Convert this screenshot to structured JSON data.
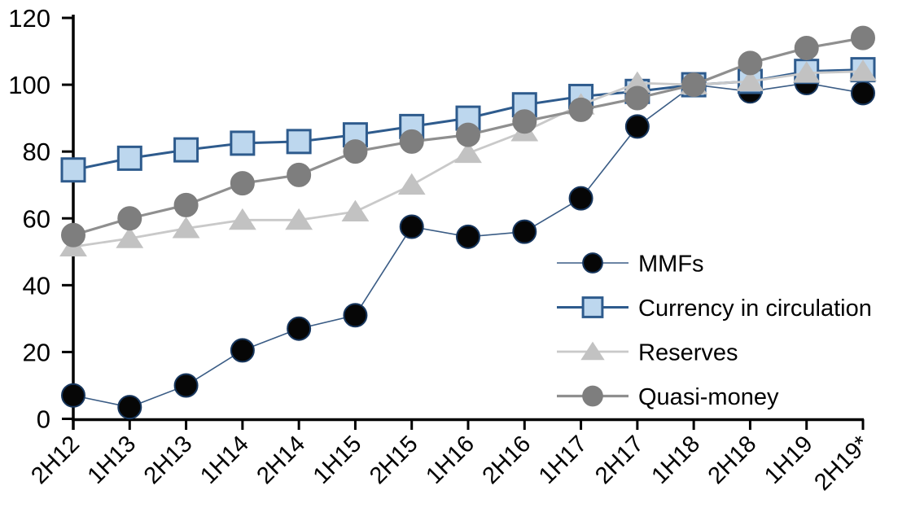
{
  "chart_data": {
    "type": "line",
    "title": "",
    "xlabel": "",
    "ylabel": "",
    "categories": [
      "2H12",
      "1H13",
      "2H13",
      "1H14",
      "2H14",
      "1H15",
      "2H15",
      "1H16",
      "2H16",
      "1H17",
      "2H17",
      "1H18",
      "2H18",
      "1H19",
      "2H19*"
    ],
    "series": [
      {
        "name": "MMFs",
        "marker": "circle",
        "marker_fill": "#060606",
        "marker_stroke": "#17365d",
        "marker_stroke_width": 2,
        "marker_size": 28,
        "line_color": "#3a5c85",
        "line_width": 1.6,
        "values": [
          7,
          3.5,
          10,
          20.5,
          27,
          31,
          57.5,
          54.5,
          56,
          66,
          87.5,
          100,
          98,
          100.5,
          97.5
        ]
      },
      {
        "name": "Currency in circulation",
        "marker": "square",
        "marker_fill": "#bdd7ee",
        "marker_stroke": "#2e5b8d",
        "marker_stroke_width": 3,
        "marker_size": 28,
        "line_color": "#2e5b8d",
        "line_width": 3,
        "values": [
          74.5,
          78,
          80.5,
          82.5,
          83,
          85,
          87.5,
          90,
          94,
          96.5,
          98,
          100,
          101,
          104,
          104.5
        ]
      },
      {
        "name": "Reserves",
        "marker": "triangle",
        "marker_fill": "#c2c2c2",
        "marker_stroke": "#c2c2c2",
        "marker_stroke_width": 1,
        "marker_size": 30,
        "line_color": "#c9c9c9",
        "line_width": 2.8,
        "values": [
          51.5,
          54,
          57,
          59.5,
          59.5,
          62,
          70,
          79.5,
          86,
          94,
          100.5,
          100,
          101,
          103.5,
          104
        ]
      },
      {
        "name": "Quasi-money",
        "marker": "circle",
        "marker_fill": "#7e7e7e",
        "marker_stroke": "#7e7e7e",
        "marker_stroke_width": 1,
        "marker_size": 29,
        "line_color": "#8f8f8f",
        "line_width": 3.2,
        "values": [
          55,
          60,
          64,
          70.5,
          73,
          80,
          83,
          85,
          89,
          92.5,
          96,
          100,
          106.5,
          111,
          114
        ]
      }
    ],
    "ylim": [
      0,
      120
    ],
    "yticks": [
      0,
      20,
      40,
      60,
      80,
      100,
      120
    ],
    "grid": false,
    "legend_position": "inside-right",
    "legend_labels": [
      "MMFs",
      "Currency in circulation",
      "Reserves",
      "Quasi-money"
    ],
    "axis_color": "#000000"
  }
}
